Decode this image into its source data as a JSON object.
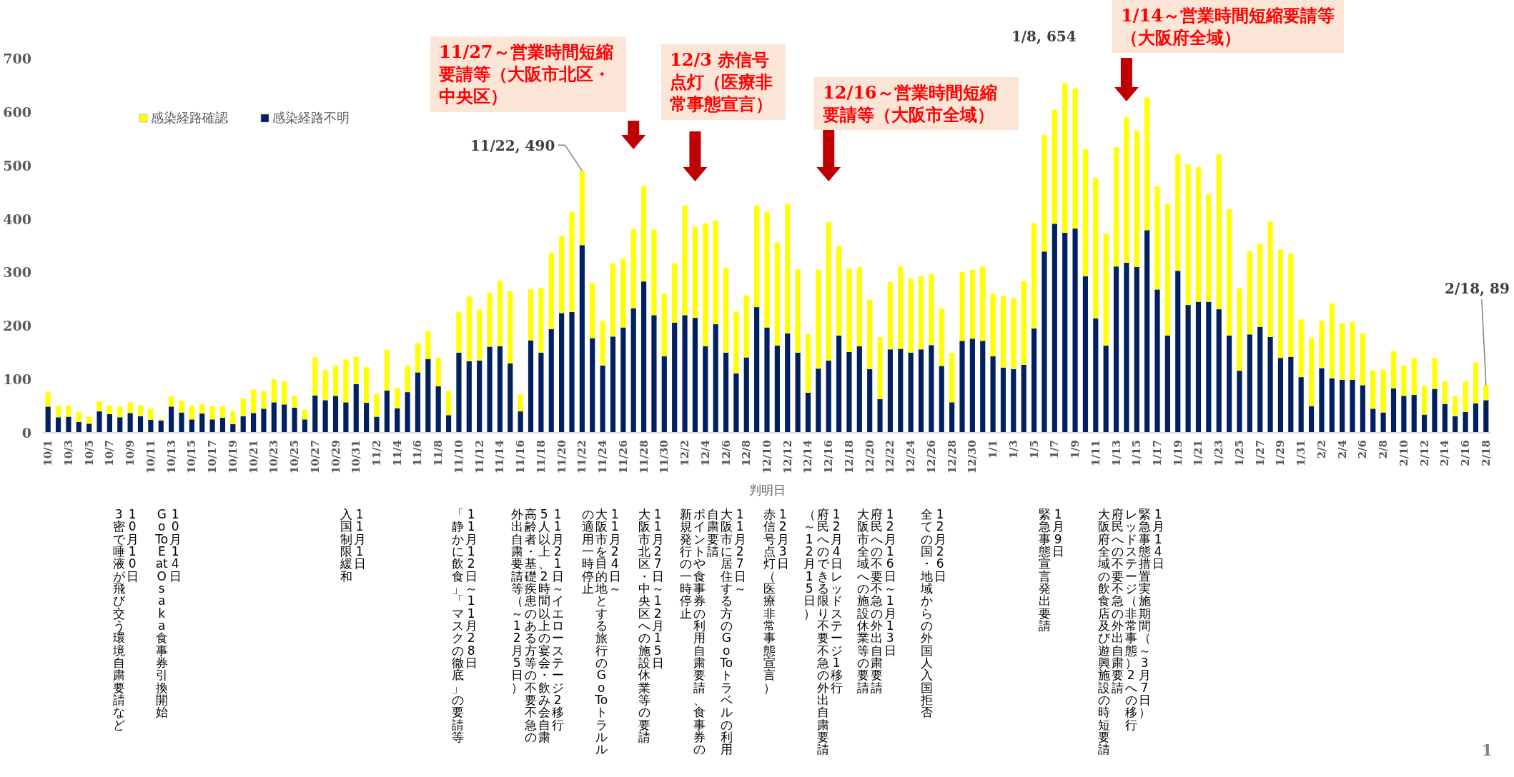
{
  "chart_data": {
    "type": "bar",
    "stacked": true,
    "xlabel": "判明日",
    "legend": "top left",
    "ylim": [
      0,
      700
    ],
    "yticks": [
      0,
      100,
      200,
      300,
      400,
      500,
      600,
      700
    ],
    "categories": [
      "10/1",
      null,
      "10/3",
      null,
      "10/5",
      null,
      "10/7",
      null,
      "10/9",
      null,
      "10/11",
      null,
      "10/13",
      null,
      "10/15",
      null,
      "10/17",
      null,
      "10/19",
      null,
      "10/21",
      null,
      "10/23",
      null,
      "10/25",
      null,
      "10/27",
      null,
      "10/29",
      null,
      "10/31",
      null,
      "11/2",
      null,
      "11/4",
      null,
      "11/6",
      null,
      "11/8",
      null,
      "11/10",
      null,
      "11/12",
      null,
      "11/14",
      null,
      "11/16",
      null,
      "11/18",
      null,
      "11/20",
      null,
      "11/22",
      null,
      "11/24",
      null,
      "11/26",
      null,
      "11/28",
      null,
      "11/30",
      null,
      "12/2",
      null,
      "12/4",
      null,
      "12/6",
      null,
      "12/8",
      null,
      "12/10",
      null,
      "12/12",
      null,
      "12/14",
      null,
      "12/16",
      null,
      "12/18",
      null,
      "12/20",
      null,
      "12/22",
      null,
      "12/24",
      null,
      "12/26",
      null,
      "12/28",
      null,
      "12/30",
      null,
      "1/1",
      null,
      "1/3",
      null,
      "1/5",
      null,
      "1/7",
      null,
      "1/9",
      null,
      "1/11",
      null,
      "1/13",
      null,
      "1/15",
      null,
      "1/17",
      null,
      "1/19",
      null,
      "1/21",
      null,
      "1/23",
      null,
      "1/25",
      null,
      "1/27",
      null,
      "1/29",
      null,
      "1/31",
      null,
      "2/2",
      null,
      "2/4",
      null,
      "2/6",
      null,
      "2/8",
      null,
      "2/10",
      null,
      "2/12",
      null,
      "2/14",
      null,
      "2/16",
      null,
      "2/18"
    ],
    "series": [
      {
        "name": "感染経路不明",
        "color": "#002060",
        "values": [
          49,
          29,
          30,
          20,
          17,
          40,
          35,
          29,
          37,
          31,
          24,
          23,
          49,
          38,
          25,
          36,
          25,
          28,
          16,
          31,
          37,
          45,
          57,
          53,
          47,
          25,
          70,
          61,
          69,
          57,
          91,
          56,
          30,
          79,
          46,
          76,
          113,
          138,
          87,
          33,
          150,
          134,
          135,
          161,
          162,
          130,
          40,
          173,
          150,
          194,
          224,
          226,
          351,
          177,
          126,
          180,
          197,
          233,
          283,
          220,
          143,
          206,
          220,
          215,
          162,
          203,
          150,
          111,
          141,
          235,
          197,
          163,
          186,
          150,
          75,
          120,
          135,
          182,
          151,
          162,
          119,
          63,
          156,
          157,
          150,
          156,
          164,
          125,
          57,
          172,
          176,
          172,
          143,
          122,
          119,
          127,
          195,
          339,
          391,
          374,
          382,
          293,
          214,
          163,
          311,
          318,
          310,
          379,
          268,
          182,
          303,
          239,
          245,
          245,
          231,
          182,
          116,
          184,
          198,
          179,
          140,
          142,
          104,
          50,
          121,
          102,
          99,
          99,
          89,
          45,
          38,
          83,
          69,
          71,
          34,
          82,
          54,
          31,
          39,
          55,
          61
        ]
      },
      {
        "name": "感染経路確認",
        "color": "#ffff00",
        "values": [
          27,
          21,
          21,
          19,
          13,
          19,
          16,
          20,
          20,
          21,
          21,
          3,
          20,
          22,
          26,
          17,
          25,
          22,
          24,
          33,
          44,
          33,
          43,
          43,
          22,
          18,
          71,
          56,
          56,
          80,
          51,
          67,
          43,
          76,
          38,
          49,
          55,
          52,
          53,
          45,
          76,
          121,
          95,
          101,
          122,
          135,
          32,
          95,
          121,
          143,
          144,
          187,
          139,
          103,
          83,
          137,
          128,
          148,
          178,
          160,
          117,
          111,
          205,
          170,
          230,
          194,
          159,
          116,
          116,
          190,
          216,
          193,
          242,
          156,
          109,
          185,
          259,
          167,
          156,
          148,
          130,
          116,
          126,
          154,
          138,
          137,
          133,
          107,
          92,
          129,
          129,
          139,
          117,
          134,
          133,
          157,
          197,
          218,
          213,
          280,
          262,
          237,
          263,
          209,
          223,
          272,
          255,
          248,
          193,
          246,
          218,
          263,
          252,
          201,
          290,
          236,
          154,
          156,
          156,
          215,
          203,
          193,
          108,
          127,
          88,
          140,
          106,
          108,
          97,
          71,
          80,
          70,
          57,
          68,
          54,
          58,
          42,
          37,
          57,
          76,
          28
        ]
      }
    ],
    "annotations": [
      {
        "text": "11/22, 490",
        "x": "11/22",
        "y": 490
      },
      "1/8, 654",
      {
        "text": "2/18, 89",
        "x": "2/18",
        "y": 89
      },
      "11/27～営業時間短縮要請等（大阪市北区・中央区）",
      "12/3 赤信号点灯（医療非常事態宣言）",
      "12/16～営業時間短縮要請等（大阪市全域）",
      "1/14～営業時間短縮要請等（大阪府全域）",
      "10月10日",
      "3密で唾液が飛び交う環境自粛要請など",
      "10月14日",
      "Go To Eat Osaka　食事券引換開始",
      "11月1日",
      "入国制限緩和",
      "11月12日～11月28日",
      "「静かに飲食」「マスクの徹底」の要請等",
      "11月21日～イエローステージ2移行",
      "5人以上、2時間以上の宴会・飲み会自粛",
      "高齢者・基礎疾患のある方等の不要不急の",
      "外出自粛要請等（～12月5日）",
      "11月24日～",
      "大阪市を目的地とする旅行のGoToトラルル",
      "の適用一時停止",
      "11月27日～12月15日",
      "大阪市北区・中央区への施設休業等の要請",
      "11月27日～",
      "大阪市に居住する方のGoToトラベルの利用",
      "自粛要請",
      "ポイントや食事券の利用自粛要請、食事券の",
      "新規発行の一時停止",
      "12月3日",
      "赤信号点灯（医療非常事態宣言）",
      "12月4日レッドステージ1移行",
      "府民へのできる限り不要不急の外出自粛要請",
      "（～12月15日）",
      "12月16日～1月13日",
      "府民への不要不急の外出自粛要請",
      "大阪市全域への施設休業等の要請",
      "12月26日",
      "全ての国・地域からの外国人入国拒否",
      "1月9日",
      "緊急事態宣言発出要請",
      "1月14日",
      "緊急事態措置実施期間（～3月7日）",
      "レッドステージ（非常事態）2への移行",
      "府民への不要不急の外出自粛要請",
      "大阪府全域の飲食店及び遊興施設の時短要請",
      "1"
    ]
  }
}
